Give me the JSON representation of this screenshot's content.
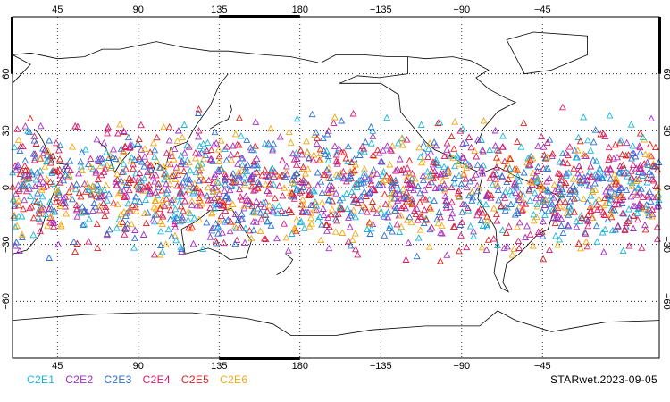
{
  "map": {
    "projection": "equirectangular",
    "lon_ticks": [
      {
        "lon": 45,
        "label": "45"
      },
      {
        "lon": 90,
        "label": "90"
      },
      {
        "lon": 135,
        "label": "135"
      },
      {
        "lon": 180,
        "label": "180"
      },
      {
        "lon": 225,
        "label": "−135"
      },
      {
        "lon": 270,
        "label": "−90"
      },
      {
        "lon": 315,
        "label": "−45"
      }
    ],
    "lat_ticks": [
      {
        "lat": 60,
        "label": "60"
      },
      {
        "lat": 30,
        "label": "30"
      },
      {
        "lat": 0,
        "label": "0"
      },
      {
        "lat": -30,
        "label": "−30"
      },
      {
        "lat": -60,
        "label": "−60"
      }
    ],
    "grid": "dotted",
    "marker_shape": "open-triangle",
    "data_lat_range": [
      -45,
      45
    ]
  },
  "legend": [
    {
      "label": "C2E1",
      "color": "#19b5d8"
    },
    {
      "label": "C2E2",
      "color": "#a52fc8"
    },
    {
      "label": "C2E3",
      "color": "#2a6fd4"
    },
    {
      "label": "C2E4",
      "color": "#d61a6f"
    },
    {
      "label": "C2E5",
      "color": "#e01f1f"
    },
    {
      "label": "C2E6",
      "color": "#f2a814"
    }
  ],
  "stamp": "STARwet.2023-09-05"
}
